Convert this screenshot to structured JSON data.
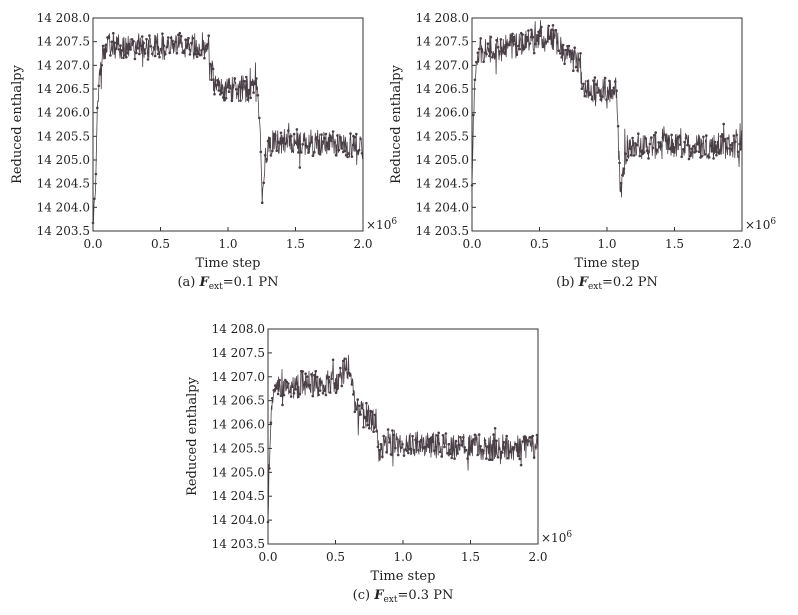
{
  "chart_data": [
    {
      "type": "line",
      "caption": {
        "prefix": "(a) ",
        "symbol": "F",
        "subscript": "ext",
        "suffix": "=0.1 PN"
      },
      "xlabel": "Time step",
      "ylabel": "Reduced enthalpy",
      "x_multiplier": "×10",
      "x_multiplier_exp": "6",
      "xlim": [
        0.0,
        2.0
      ],
      "ylim": [
        14203.5,
        14208.0
      ],
      "xticks": [
        0.0,
        0.5,
        1.0,
        1.5,
        2.0
      ],
      "xtick_labels": [
        "0.0",
        "0.5",
        "1.0",
        "1.5",
        "2.0"
      ],
      "yticks": [
        14203.5,
        14204.0,
        14204.5,
        14205.0,
        14205.5,
        14206.0,
        14206.5,
        14207.0,
        14207.5,
        14208.0
      ],
      "ytick_labels": [
        "14 203.5",
        "14 204.0",
        "14 204.5",
        "14 205.0",
        "14 205.5",
        "14 206.0",
        "14 206.5",
        "14 207.0",
        "14 207.5",
        "14 208.0"
      ],
      "grid": false,
      "series": [
        {
          "x": [
            0.0,
            0.02,
            0.03,
            0.05,
            0.07,
            0.09,
            0.86,
            0.88,
            0.9,
            0.92,
            1.22,
            1.24,
            1.25,
            1.27,
            1.3,
            1.35,
            2.0
          ],
          "y": [
            14203.6,
            14204.6,
            14206.0,
            14206.8,
            14207.2,
            14207.4,
            14207.4,
            14206.9,
            14206.6,
            14206.5,
            14206.5,
            14205.6,
            14204.2,
            14204.9,
            14205.3,
            14205.4,
            14205.3
          ]
        }
      ]
    },
    {
      "type": "line",
      "caption": {
        "prefix": "(b) ",
        "symbol": "F",
        "subscript": "ext",
        "suffix": "=0.2 PN"
      },
      "xlabel": "Time step",
      "ylabel": "Reduced enthalpy",
      "x_multiplier": "×10",
      "x_multiplier_exp": "6",
      "xlim": [
        0.0,
        2.0
      ],
      "ylim": [
        14203.5,
        14208.0
      ],
      "xticks": [
        0.0,
        0.5,
        1.0,
        1.5,
        2.0
      ],
      "xtick_labels": [
        "0.0",
        "0.5",
        "1.0",
        "1.5",
        "2.0"
      ],
      "yticks": [
        14203.5,
        14204.0,
        14204.5,
        14205.0,
        14205.5,
        14206.0,
        14206.5,
        14207.0,
        14207.5,
        14208.0
      ],
      "ytick_labels": [
        "14 203.5",
        "14 204.0",
        "14 204.5",
        "14 205.0",
        "14 205.5",
        "14 206.0",
        "14 206.5",
        "14 207.0",
        "14 207.5",
        "14 208.0"
      ],
      "grid": false,
      "series": [
        {
          "x": [
            0.0,
            0.01,
            0.02,
            0.05,
            0.3,
            0.6,
            0.65,
            0.7,
            0.8,
            0.82,
            0.85,
            1.07,
            1.08,
            1.1,
            1.13,
            1.2,
            2.0
          ],
          "y": [
            14204.6,
            14205.8,
            14206.8,
            14207.3,
            14207.4,
            14207.6,
            14207.4,
            14207.2,
            14207.1,
            14206.5,
            14206.5,
            14206.5,
            14205.6,
            14204.3,
            14205.0,
            14205.3,
            14205.3
          ]
        }
      ]
    },
    {
      "type": "line",
      "caption": {
        "prefix": "(c) ",
        "symbol": "F",
        "subscript": "ext",
        "suffix": "=0.3 PN"
      },
      "xlabel": "Time step",
      "ylabel": "Reduced enthalpy",
      "x_multiplier": "×10",
      "x_multiplier_exp": "6",
      "xlim": [
        0.0,
        2.0
      ],
      "ylim": [
        14203.5,
        14208.0
      ],
      "xticks": [
        0.0,
        0.5,
        1.0,
        1.5,
        2.0
      ],
      "xtick_labels": [
        "0.0",
        "0.5",
        "1.0",
        "1.5",
        "2.0"
      ],
      "yticks": [
        14203.5,
        14204.0,
        14204.5,
        14205.0,
        14205.5,
        14206.0,
        14206.5,
        14207.0,
        14207.5,
        14208.0
      ],
      "ytick_labels": [
        "14 203.5",
        "14 204.0",
        "14 204.5",
        "14 205.0",
        "14 205.5",
        "14 206.0",
        "14 206.5",
        "14 207.0",
        "14 207.5",
        "14 208.0"
      ],
      "grid": false,
      "series": [
        {
          "x": [
            0.0,
            0.01,
            0.02,
            0.03,
            0.05,
            0.1,
            0.5,
            0.55,
            0.6,
            0.62,
            0.65,
            0.7,
            0.8,
            0.82,
            0.9,
            2.0
          ],
          "y": [
            14204.0,
            14205.0,
            14206.0,
            14206.5,
            14206.8,
            14206.8,
            14206.9,
            14207.1,
            14207.2,
            14206.8,
            14206.3,
            14206.2,
            14206.1,
            14205.5,
            14205.6,
            14205.5
          ]
        }
      ]
    }
  ]
}
